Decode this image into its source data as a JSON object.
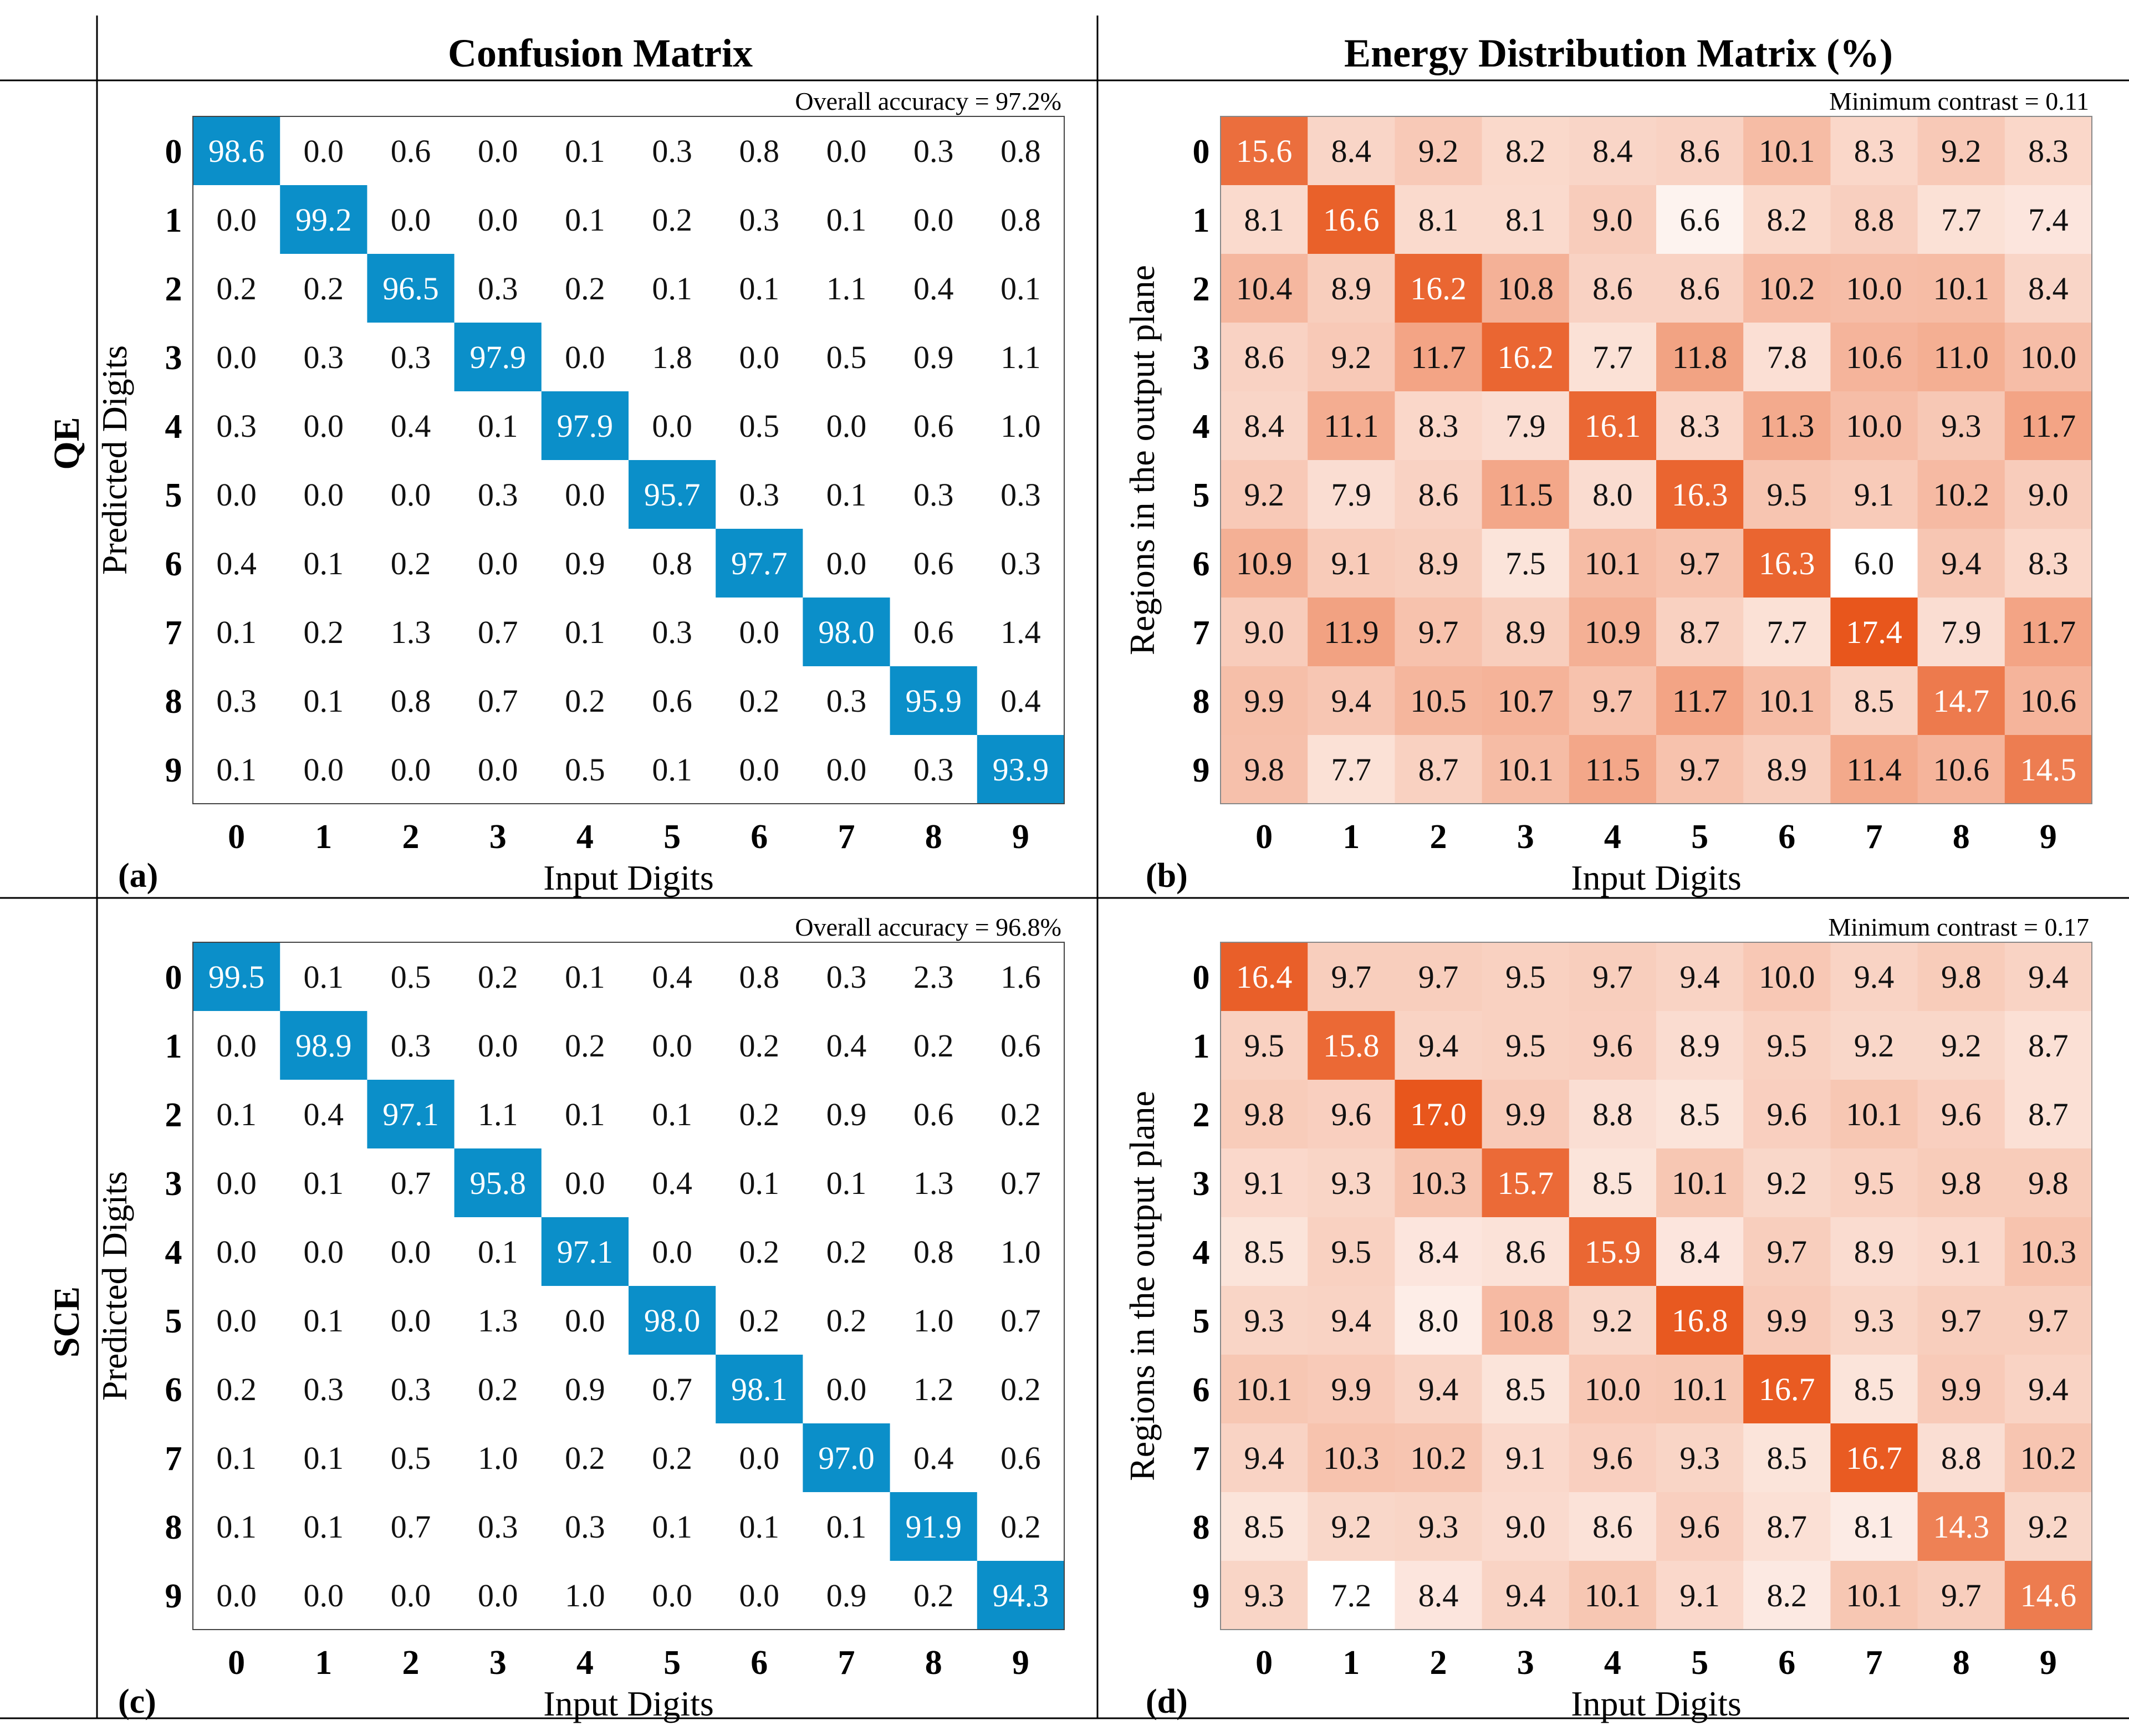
{
  "headers": {
    "confusion": "Confusion Matrix",
    "energy": "Energy Distribution Matrix (%)"
  },
  "rows": [
    {
      "label": "QE"
    },
    {
      "label": "SCE"
    }
  ],
  "colors": {
    "confusion_diag": "#0b8fc9",
    "energy_max": "#e8561c",
    "grid_line": "#000000"
  },
  "chart_data": [
    {
      "type": "heatmap",
      "panel": "(a)",
      "title": "Confusion Matrix",
      "annotation": "Overall accuracy = 97.2%",
      "xlabel": "Input Digits",
      "ylabel": "Predicted Digits",
      "x_ticks": [
        "0",
        "1",
        "2",
        "3",
        "4",
        "5",
        "6",
        "7",
        "8",
        "9"
      ],
      "y_ticks": [
        "0",
        "1",
        "2",
        "3",
        "4",
        "5",
        "6",
        "7",
        "8",
        "9"
      ],
      "style": "diagonal",
      "values": [
        [
          "98.6",
          "0.0",
          "0.6",
          "0.0",
          "0.1",
          "0.3",
          "0.8",
          "0.0",
          "0.3",
          "0.8"
        ],
        [
          "0.0",
          "99.2",
          "0.0",
          "0.0",
          "0.1",
          "0.2",
          "0.3",
          "0.1",
          "0.0",
          "0.8"
        ],
        [
          "0.2",
          "0.2",
          "96.5",
          "0.3",
          "0.2",
          "0.1",
          "0.1",
          "1.1",
          "0.4",
          "0.1"
        ],
        [
          "0.0",
          "0.3",
          "0.3",
          "97.9",
          "0.0",
          "1.8",
          "0.0",
          "0.5",
          "0.9",
          "1.1"
        ],
        [
          "0.3",
          "0.0",
          "0.4",
          "0.1",
          "97.9",
          "0.0",
          "0.5",
          "0.0",
          "0.6",
          "1.0"
        ],
        [
          "0.0",
          "0.0",
          "0.0",
          "0.3",
          "0.0",
          "95.7",
          "0.3",
          "0.1",
          "0.3",
          "0.3"
        ],
        [
          "0.4",
          "0.1",
          "0.2",
          "0.0",
          "0.9",
          "0.8",
          "97.7",
          "0.0",
          "0.6",
          "0.3"
        ],
        [
          "0.1",
          "0.2",
          "1.3",
          "0.7",
          "0.1",
          "0.3",
          "0.0",
          "98.0",
          "0.6",
          "1.4"
        ],
        [
          "0.3",
          "0.1",
          "0.8",
          "0.7",
          "0.2",
          "0.6",
          "0.2",
          "0.3",
          "95.9",
          "0.4"
        ],
        [
          "0.1",
          "0.0",
          "0.0",
          "0.0",
          "0.5",
          "0.1",
          "0.0",
          "0.0",
          "0.3",
          "93.9"
        ]
      ]
    },
    {
      "type": "heatmap",
      "panel": "(b)",
      "title": "Energy Distribution Matrix (%)",
      "annotation": "Minimum contrast = 0.11",
      "xlabel": "Input Digits",
      "ylabel": "Regions in the output plane",
      "x_ticks": [
        "0",
        "1",
        "2",
        "3",
        "4",
        "5",
        "6",
        "7",
        "8",
        "9"
      ],
      "y_ticks": [
        "0",
        "1",
        "2",
        "3",
        "4",
        "5",
        "6",
        "7",
        "8",
        "9"
      ],
      "style": "colormap",
      "values": [
        [
          "15.6",
          "8.4",
          "9.2",
          "8.2",
          "8.4",
          "8.6",
          "10.1",
          "8.3",
          "9.2",
          "8.3"
        ],
        [
          "8.1",
          "16.6",
          "8.1",
          "8.1",
          "9.0",
          "6.6",
          "8.2",
          "8.8",
          "7.7",
          "7.4"
        ],
        [
          "10.4",
          "8.9",
          "16.2",
          "10.8",
          "8.6",
          "8.6",
          "10.2",
          "10.0",
          "10.1",
          "8.4"
        ],
        [
          "8.6",
          "9.2",
          "11.7",
          "16.2",
          "7.7",
          "11.8",
          "7.8",
          "10.6",
          "11.0",
          "10.0"
        ],
        [
          "8.4",
          "11.1",
          "8.3",
          "7.9",
          "16.1",
          "8.3",
          "11.3",
          "10.0",
          "9.3",
          "11.7"
        ],
        [
          "9.2",
          "7.9",
          "8.6",
          "11.5",
          "8.0",
          "16.3",
          "9.5",
          "9.1",
          "10.2",
          "9.0"
        ],
        [
          "10.9",
          "9.1",
          "8.9",
          "7.5",
          "10.1",
          "9.7",
          "16.3",
          "6.0",
          "9.4",
          "8.3"
        ],
        [
          "9.0",
          "11.9",
          "9.7",
          "8.9",
          "10.9",
          "8.7",
          "7.7",
          "17.4",
          "7.9",
          "11.7"
        ],
        [
          "9.9",
          "9.4",
          "10.5",
          "10.7",
          "9.7",
          "11.7",
          "10.1",
          "8.5",
          "14.7",
          "10.6"
        ],
        [
          "9.8",
          "7.7",
          "8.7",
          "10.1",
          "11.5",
          "9.7",
          "8.9",
          "11.4",
          "10.6",
          "14.5"
        ]
      ]
    },
    {
      "type": "heatmap",
      "panel": "(c)",
      "title": "Confusion Matrix",
      "annotation": "Overall accuracy = 96.8%",
      "xlabel": "Input Digits",
      "ylabel": "Predicted Digits",
      "x_ticks": [
        "0",
        "1",
        "2",
        "3",
        "4",
        "5",
        "6",
        "7",
        "8",
        "9"
      ],
      "y_ticks": [
        "0",
        "1",
        "2",
        "3",
        "4",
        "5",
        "6",
        "7",
        "8",
        "9"
      ],
      "style": "diagonal",
      "values": [
        [
          "99.5",
          "0.1",
          "0.5",
          "0.2",
          "0.1",
          "0.4",
          "0.8",
          "0.3",
          "2.3",
          "1.6"
        ],
        [
          "0.0",
          "98.9",
          "0.3",
          "0.0",
          "0.2",
          "0.0",
          "0.2",
          "0.4",
          "0.2",
          "0.6"
        ],
        [
          "0.1",
          "0.4",
          "97.1",
          "1.1",
          "0.1",
          "0.1",
          "0.2",
          "0.9",
          "0.6",
          "0.2"
        ],
        [
          "0.0",
          "0.1",
          "0.7",
          "95.8",
          "0.0",
          "0.4",
          "0.1",
          "0.1",
          "1.3",
          "0.7"
        ],
        [
          "0.0",
          "0.0",
          "0.0",
          "0.1",
          "97.1",
          "0.0",
          "0.2",
          "0.2",
          "0.8",
          "1.0"
        ],
        [
          "0.0",
          "0.1",
          "0.0",
          "1.3",
          "0.0",
          "98.0",
          "0.2",
          "0.2",
          "1.0",
          "0.7"
        ],
        [
          "0.2",
          "0.3",
          "0.3",
          "0.2",
          "0.9",
          "0.7",
          "98.1",
          "0.0",
          "1.2",
          "0.2"
        ],
        [
          "0.1",
          "0.1",
          "0.5",
          "1.0",
          "0.2",
          "0.2",
          "0.0",
          "97.0",
          "0.4",
          "0.6"
        ],
        [
          "0.1",
          "0.1",
          "0.7",
          "0.3",
          "0.3",
          "0.1",
          "0.1",
          "0.1",
          "91.9",
          "0.2"
        ],
        [
          "0.0",
          "0.0",
          "0.0",
          "0.0",
          "1.0",
          "0.0",
          "0.0",
          "0.9",
          "0.2",
          "94.3"
        ]
      ]
    },
    {
      "type": "heatmap",
      "panel": "(d)",
      "title": "Energy Distribution Matrix (%)",
      "annotation": "Minimum contrast = 0.17",
      "xlabel": "Input Digits",
      "ylabel": "Regions in the output plane",
      "x_ticks": [
        "0",
        "1",
        "2",
        "3",
        "4",
        "5",
        "6",
        "7",
        "8",
        "9"
      ],
      "y_ticks": [
        "0",
        "1",
        "2",
        "3",
        "4",
        "5",
        "6",
        "7",
        "8",
        "9"
      ],
      "style": "colormap",
      "values": [
        [
          "16.4",
          "9.7",
          "9.7",
          "9.5",
          "9.7",
          "9.4",
          "10.0",
          "9.4",
          "9.8",
          "9.4"
        ],
        [
          "9.5",
          "15.8",
          "9.4",
          "9.5",
          "9.6",
          "8.9",
          "9.5",
          "9.2",
          "9.2",
          "8.7"
        ],
        [
          "9.8",
          "9.6",
          "17.0",
          "9.9",
          "8.8",
          "8.5",
          "9.6",
          "10.1",
          "9.6",
          "8.7"
        ],
        [
          "9.1",
          "9.3",
          "10.3",
          "15.7",
          "8.5",
          "10.1",
          "9.2",
          "9.5",
          "9.8",
          "9.8"
        ],
        [
          "8.5",
          "9.5",
          "8.4",
          "8.6",
          "15.9",
          "8.4",
          "9.7",
          "8.9",
          "9.1",
          "10.3"
        ],
        [
          "9.3",
          "9.4",
          "8.0",
          "10.8",
          "9.2",
          "16.8",
          "9.9",
          "9.3",
          "9.7",
          "9.7"
        ],
        [
          "10.1",
          "9.9",
          "9.4",
          "8.5",
          "10.0",
          "10.1",
          "16.7",
          "8.5",
          "9.9",
          "9.4"
        ],
        [
          "9.4",
          "10.3",
          "10.2",
          "9.1",
          "9.6",
          "9.3",
          "8.5",
          "16.7",
          "8.8",
          "10.2"
        ],
        [
          "8.5",
          "9.2",
          "9.3",
          "9.0",
          "8.6",
          "9.6",
          "8.7",
          "8.1",
          "14.3",
          "9.2"
        ],
        [
          "9.3",
          "7.2",
          "8.4",
          "9.4",
          "10.1",
          "9.1",
          "8.2",
          "10.1",
          "9.7",
          "14.6"
        ]
      ]
    }
  ]
}
